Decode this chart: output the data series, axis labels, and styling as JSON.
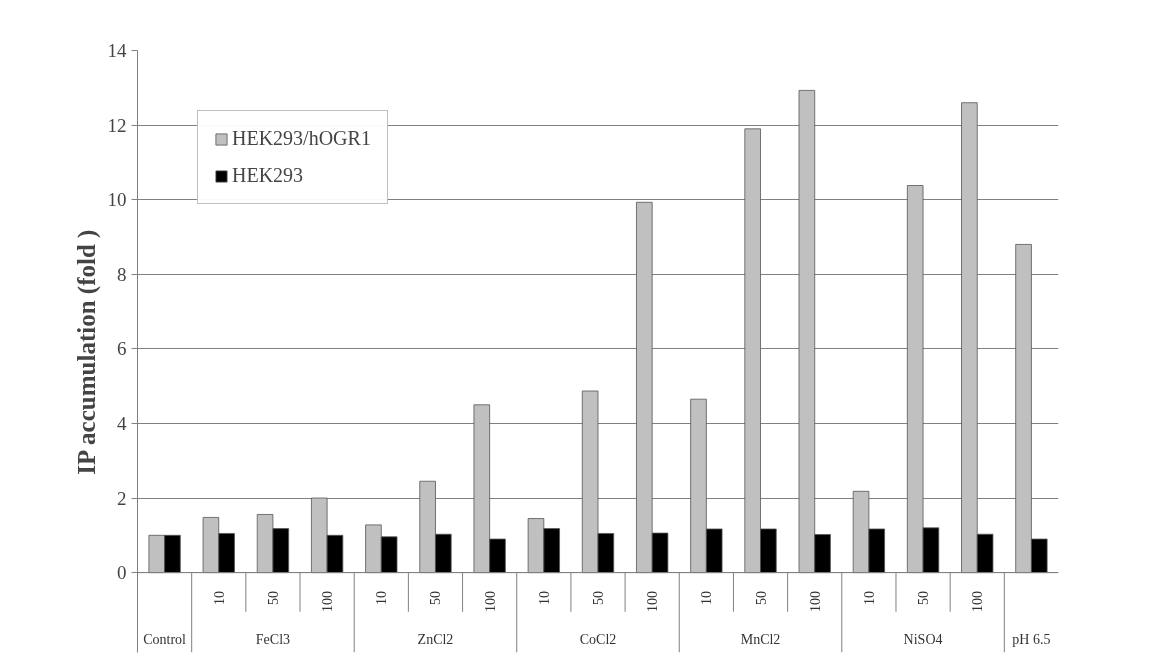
{
  "chart_data": {
    "type": "bar",
    "ylabel": "IP accumulation (fold )",
    "categories": [
      null,
      "10",
      "50",
      "100",
      "10",
      "50",
      "100",
      "10",
      "50",
      "100",
      "10",
      "50",
      "100",
      "10",
      "50",
      "100",
      null
    ],
    "series": [
      {
        "name": "HEK293/hOGR1",
        "color": "#c0c0c0",
        "values": [
          1.0,
          1.48,
          1.56,
          2.0,
          1.28,
          2.45,
          4.5,
          1.45,
          4.87,
          9.93,
          4.65,
          11.9,
          12.93,
          2.18,
          10.38,
          12.6,
          8.8
        ]
      },
      {
        "name": "HEK293",
        "color": "#000000",
        "values": [
          1.0,
          1.05,
          1.18,
          1.0,
          0.96,
          1.03,
          0.9,
          1.18,
          1.05,
          1.06,
          1.17,
          1.17,
          1.02,
          1.17,
          1.2,
          1.03,
          0.9
        ]
      }
    ],
    "annotations": [
      "Control",
      "FeCl3",
      "ZnCl2",
      "CoCl2",
      "MnCl2",
      "NiSO4",
      "pH 6.5"
    ],
    "ylim": [
      0,
      14
    ],
    "yticks": [
      0,
      2,
      4,
      6,
      8,
      10,
      12,
      14
    ],
    "grid": "y",
    "legend": "top left"
  }
}
